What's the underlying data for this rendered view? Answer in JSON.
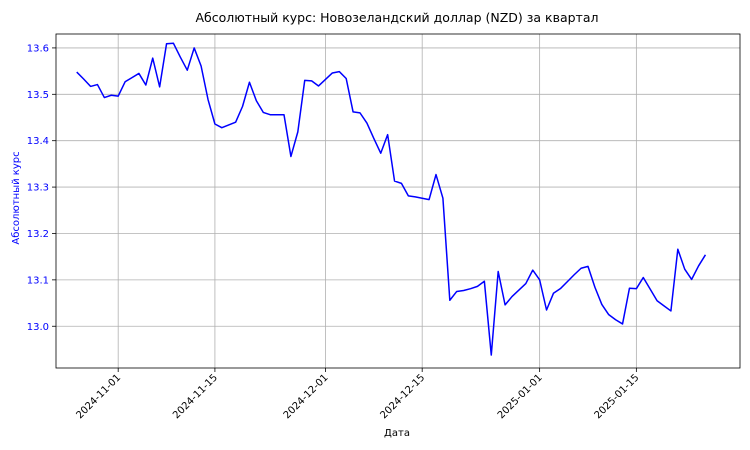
{
  "chart_data": {
    "type": "line",
    "title": "Абсолютный курс: Новозеландский доллар (NZD) за квартал",
    "xlabel": "Дата",
    "ylabel": "Абсолютный курс",
    "ylim": [
      12.91,
      13.63
    ],
    "xlim": [
      "2024-10-23",
      "2025-01-30"
    ],
    "grid": true,
    "colors": {
      "series": "#0000ff",
      "ytick": "#0000ff",
      "grid": "#b0b0b0"
    },
    "y_ticks": [
      "13.0",
      "13.1",
      "13.2",
      "13.3",
      "13.4",
      "13.5",
      "13.6"
    ],
    "x_ticks": [
      "2024-11-01",
      "2024-11-15",
      "2024-12-01",
      "2024-12-15",
      "2025-01-01",
      "2025-01-15"
    ],
    "series": [
      {
        "x": [
          "2024-10-26",
          "2024-10-27",
          "2024-10-28",
          "2024-10-29",
          "2024-10-30",
          "2024-10-31",
          "2024-11-01",
          "2024-11-02",
          "2024-11-03",
          "2024-11-04",
          "2024-11-05",
          "2024-11-06",
          "2024-11-07",
          "2024-11-08",
          "2024-11-09",
          "2024-11-10",
          "2024-11-11",
          "2024-11-12",
          "2024-11-13",
          "2024-11-14",
          "2024-11-15",
          "2024-11-16",
          "2024-11-17",
          "2024-11-18",
          "2024-11-19",
          "2024-11-20",
          "2024-11-21",
          "2024-11-22",
          "2024-11-23",
          "2024-11-24",
          "2024-11-25",
          "2024-11-26",
          "2024-11-27",
          "2024-11-28",
          "2024-11-29",
          "2024-11-30",
          "2024-12-01",
          "2024-12-02",
          "2024-12-03",
          "2024-12-04",
          "2024-12-05",
          "2024-12-06",
          "2024-12-07",
          "2024-12-08",
          "2024-12-09",
          "2024-12-10",
          "2024-12-11",
          "2024-12-12",
          "2024-12-13",
          "2024-12-14",
          "2024-12-15",
          "2024-12-16",
          "2024-12-17",
          "2024-12-18",
          "2024-12-19",
          "2024-12-20",
          "2024-12-21",
          "2024-12-22",
          "2024-12-23",
          "2024-12-24",
          "2024-12-25",
          "2024-12-26",
          "2024-12-27",
          "2024-12-28",
          "2024-12-29",
          "2024-12-30",
          "2024-12-31",
          "2025-01-01",
          "2025-01-02",
          "2025-01-03",
          "2025-01-04",
          "2025-01-05",
          "2025-01-06",
          "2025-01-07",
          "2025-01-08",
          "2025-01-09",
          "2025-01-10",
          "2025-01-11",
          "2025-01-12",
          "2025-01-13",
          "2025-01-14",
          "2025-01-15",
          "2025-01-16",
          "2025-01-17",
          "2025-01-18",
          "2025-01-19",
          "2025-01-20",
          "2025-01-21",
          "2025-01-22",
          "2025-01-23",
          "2025-01-24",
          "2025-01-25"
        ],
        "values": [
          13.548,
          13.533,
          13.517,
          13.521,
          13.493,
          13.498,
          13.496,
          13.527,
          13.536,
          13.545,
          13.52,
          13.578,
          13.516,
          13.609,
          13.61,
          13.58,
          13.552,
          13.6,
          13.561,
          13.489,
          13.436,
          13.428,
          13.434,
          13.44,
          13.474,
          13.526,
          13.486,
          13.461,
          13.456,
          13.456,
          13.456,
          13.366,
          13.419,
          13.53,
          13.529,
          13.518,
          13.532,
          13.546,
          13.549,
          13.534,
          13.462,
          13.46,
          13.438,
          13.405,
          13.373,
          13.413,
          13.313,
          13.308,
          13.281,
          13.279,
          13.276,
          13.273,
          13.327,
          13.276,
          13.056,
          13.075,
          13.077,
          13.081,
          13.086,
          13.097,
          12.938,
          13.118,
          13.046,
          13.064,
          13.078,
          13.092,
          13.121,
          13.1,
          13.035,
          13.071,
          13.081,
          13.096,
          13.111,
          13.125,
          13.129,
          13.084,
          13.047,
          13.025,
          13.014,
          13.005,
          13.082,
          13.081,
          13.105,
          13.08,
          13.055,
          13.044,
          13.033,
          13.166,
          13.123,
          13.101,
          13.13,
          13.154
        ]
      }
    ]
  }
}
